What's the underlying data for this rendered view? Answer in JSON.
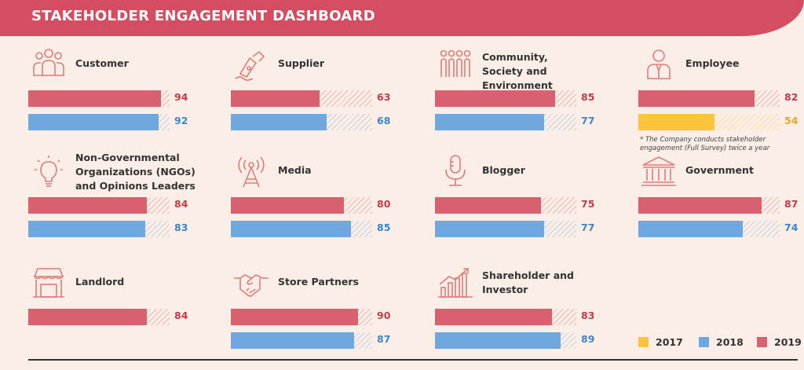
{
  "title": "STAKEHOLDER ENGAGEMENT DASHBOARD",
  "colors": {
    "2017": "#fbc43c",
    "2018": "#6ea8df",
    "2019": "#d9606e",
    "header": "#d44d60"
  },
  "legend": [
    {
      "label": "2017",
      "color": "#fbc43c"
    },
    {
      "label": "2018",
      "color": "#6ea8df"
    },
    {
      "label": "2019",
      "color": "#d9606e"
    }
  ],
  "employee_note": "* The Company conducts stakeholder engagement (Full Survey) twice a year",
  "chart_data": {
    "type": "bar",
    "scale_max": 100,
    "series_names": [
      "2019",
      "2018",
      "2017"
    ],
    "categories": [
      {
        "name": "Customer",
        "icon": "people-group-icon",
        "values": {
          "2019": 94,
          "2018": 92
        }
      },
      {
        "name": "Supplier",
        "icon": "pen-nib-icon",
        "values": {
          "2019": 63,
          "2018": 68
        }
      },
      {
        "name": "Community, Society and Environment",
        "icon": "community-icon",
        "values": {
          "2019": 85,
          "2018": 77
        }
      },
      {
        "name": "Employee",
        "icon": "employee-icon",
        "values": {
          "2019": 82,
          "2017": 54
        }
      },
      {
        "name": "Non-Governmental Organizations (NGOs) and Opinions Leaders",
        "icon": "lightbulb-icon",
        "values": {
          "2019": 84,
          "2018": 83
        }
      },
      {
        "name": "Media",
        "icon": "broadcast-tower-icon",
        "values": {
          "2019": 80,
          "2018": 85
        }
      },
      {
        "name": "Blogger",
        "icon": "microphone-icon",
        "values": {
          "2019": 75,
          "2018": 77
        }
      },
      {
        "name": "Government",
        "icon": "government-building-icon",
        "values": {
          "2019": 87,
          "2018": 74
        }
      },
      {
        "name": "Landlord",
        "icon": "storefront-icon",
        "values": {
          "2019": 84
        }
      },
      {
        "name": "Store Partners",
        "icon": "handshake-icon",
        "values": {
          "2019": 90,
          "2018": 87
        }
      },
      {
        "name": "Shareholder and Investor",
        "icon": "growth-chart-icon",
        "values": {
          "2019": 83,
          "2018": 89
        }
      }
    ]
  }
}
